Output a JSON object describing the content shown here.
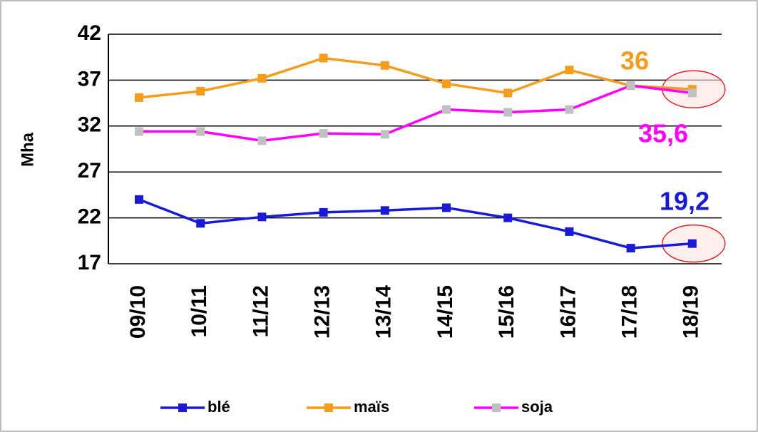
{
  "chart_data": {
    "type": "line",
    "y_label": "Mha",
    "categories": [
      "09/10",
      "10/11",
      "11/12",
      "12/13",
      "13/14",
      "14/15",
      "15/16",
      "16/17",
      "17/18",
      "18/19"
    ],
    "series": [
      {
        "name": "blé",
        "color": "#1a1ad6",
        "marker_color": "#1a1ad6",
        "values": [
          24.0,
          21.4,
          22.1,
          22.6,
          22.8,
          23.1,
          22.0,
          20.5,
          18.7,
          19.2
        ],
        "value_labels": [
          null,
          null,
          null,
          null,
          null,
          null,
          null,
          null,
          null,
          "19,2"
        ]
      },
      {
        "name": "maïs",
        "color": "#f39c1e",
        "marker_color": "#f39c1e",
        "values": [
          35.1,
          35.8,
          37.2,
          39.4,
          38.6,
          36.6,
          35.6,
          38.1,
          36.4,
          36
        ],
        "value_labels": [
          null,
          null,
          null,
          null,
          null,
          null,
          null,
          null,
          null,
          "36"
        ]
      },
      {
        "name": "soja",
        "color": "#ff00ff",
        "marker_color": "#c0c0c0",
        "label_color": "#ff00ff",
        "values": [
          31.4,
          31.4,
          30.4,
          31.2,
          31.1,
          33.8,
          33.5,
          33.8,
          36.4,
          35.6
        ],
        "value_labels": [
          null,
          null,
          null,
          null,
          null,
          null,
          null,
          null,
          null,
          "35,6"
        ]
      }
    ],
    "ylim": [
      17,
      42
    ],
    "yticks": [
      17,
      22,
      27,
      32,
      37,
      42
    ],
    "grid": true,
    "legend": "bottom"
  }
}
